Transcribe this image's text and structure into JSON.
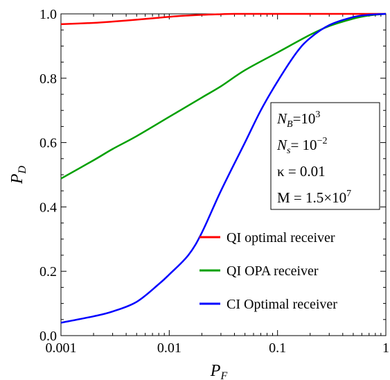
{
  "chart_data": {
    "type": "line",
    "xlabel": {
      "main": "P",
      "sub": "F"
    },
    "ylabel": {
      "main": "P",
      "sub": "D"
    },
    "xscale": "log",
    "xlim": [
      0.001,
      1
    ],
    "ylim": [
      0.0,
      1.0
    ],
    "grid": false,
    "legend_position": "bottom-right",
    "x_ticks": [
      {
        "value": 0.001,
        "label": "0.001"
      },
      {
        "value": 0.01,
        "label": "0.01"
      },
      {
        "value": 0.1,
        "label": "0.1"
      },
      {
        "value": 1,
        "label": "1"
      }
    ],
    "y_ticks": [
      {
        "value": 0.0,
        "label": "0.0"
      },
      {
        "value": 0.2,
        "label": "0.2"
      },
      {
        "value": 0.4,
        "label": "0.4"
      },
      {
        "value": 0.6,
        "label": "0.6"
      },
      {
        "value": 0.8,
        "label": "0.8"
      },
      {
        "value": 1.0,
        "label": "1.0"
      }
    ],
    "series": [
      {
        "name": "QI optimal receiver",
        "color": "#ff0000",
        "points": [
          [
            0.001,
            0.968
          ],
          [
            0.002,
            0.972
          ],
          [
            0.003,
            0.976
          ],
          [
            0.005,
            0.982
          ],
          [
            0.008,
            0.988
          ],
          [
            0.012,
            0.993
          ],
          [
            0.02,
            0.997
          ],
          [
            0.03,
            0.999
          ],
          [
            0.04,
            1.0
          ],
          [
            0.1,
            1.0
          ],
          [
            0.3,
            1.0
          ],
          [
            1,
            1.0
          ]
        ]
      },
      {
        "name": "QI OPA receiver",
        "color": "#00a000",
        "points": [
          [
            0.001,
            0.488
          ],
          [
            0.002,
            0.545
          ],
          [
            0.003,
            0.58
          ],
          [
            0.005,
            0.62
          ],
          [
            0.01,
            0.68
          ],
          [
            0.02,
            0.74
          ],
          [
            0.03,
            0.775
          ],
          [
            0.05,
            0.825
          ],
          [
            0.1,
            0.88
          ],
          [
            0.2,
            0.935
          ],
          [
            0.3,
            0.962
          ],
          [
            0.5,
            0.985
          ],
          [
            0.7,
            0.995
          ],
          [
            1,
            1.0
          ]
        ]
      },
      {
        "name": "CI Optimal receiver",
        "color": "#0000ff",
        "points": [
          [
            0.001,
            0.04
          ],
          [
            0.002,
            0.06
          ],
          [
            0.003,
            0.075
          ],
          [
            0.005,
            0.105
          ],
          [
            0.008,
            0.16
          ],
          [
            0.01,
            0.19
          ],
          [
            0.015,
            0.25
          ],
          [
            0.02,
            0.32
          ],
          [
            0.03,
            0.45
          ],
          [
            0.05,
            0.6
          ],
          [
            0.07,
            0.7
          ],
          [
            0.1,
            0.79
          ],
          [
            0.15,
            0.88
          ],
          [
            0.2,
            0.925
          ],
          [
            0.3,
            0.965
          ],
          [
            0.5,
            0.99
          ],
          [
            0.7,
            0.997
          ],
          [
            1,
            1.0
          ]
        ]
      }
    ]
  },
  "info_box": {
    "nb_sym": "N",
    "nb_sub": "B",
    "nb_val": "=10",
    "nb_exp": "3",
    "ns_sym": "N",
    "ns_sub": "s",
    "ns_val": "= 10",
    "ns_exp": "−2",
    "kappa_text": "κ = 0.01",
    "m_val": "M = 1.5×10",
    "m_exp": "7"
  }
}
